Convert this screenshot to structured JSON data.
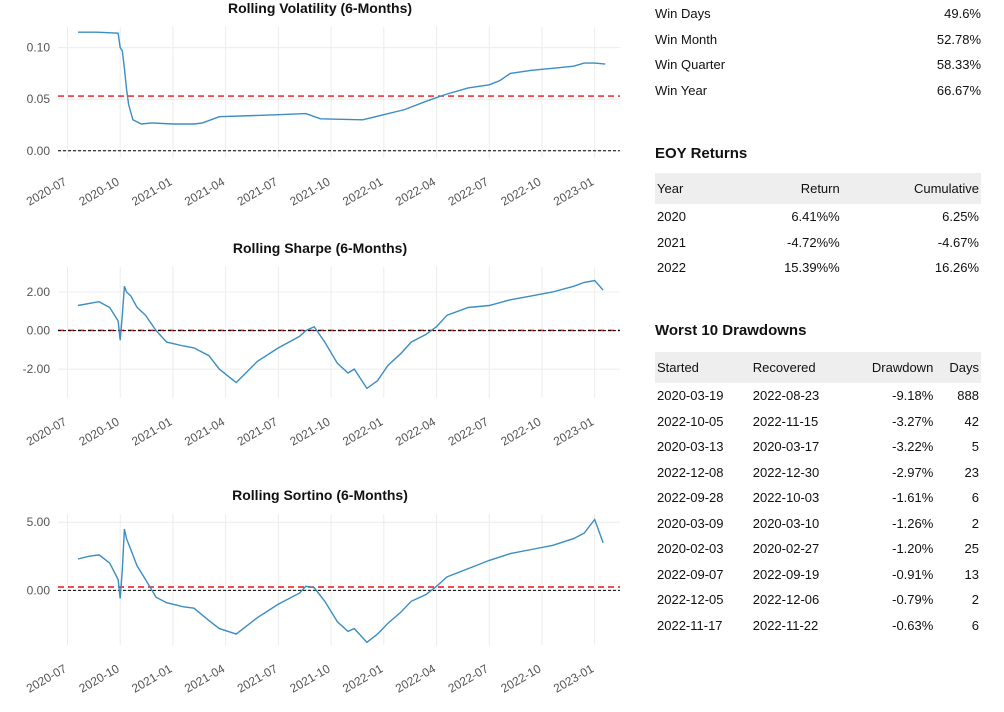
{
  "chart_data": [
    {
      "type": "line",
      "title": "Rolling Volatility (6-Months)",
      "x_ticks": [
        "2020-07",
        "2020-10",
        "2021-01",
        "2021-04",
        "2021-07",
        "2021-10",
        "2022-01",
        "2022-04",
        "2022-07",
        "2022-10",
        "2023-01"
      ],
      "y_ticks": [
        "0.00",
        "0.05",
        "0.10"
      ],
      "ylim": [
        -0.007,
        0.12
      ],
      "xlim": [
        2020.455,
        2023.12
      ],
      "reference_lines": [
        {
          "value": 0.053,
          "color": "#e8141a",
          "style": "dashed"
        },
        {
          "value": 0,
          "color": "#000000",
          "style": "dashed"
        }
      ],
      "series": [
        {
          "name": "Rolling Volatility",
          "color": "#3b8dc2",
          "x": [
            2020.55,
            2020.64,
            2020.74,
            2020.75,
            2020.76,
            2020.77,
            2020.78,
            2020.79,
            2020.81,
            2020.85,
            2020.9,
            2021.0,
            2021.1,
            2021.14,
            2021.22,
            2021.5,
            2021.63,
            2021.7,
            2021.9,
            2022.0,
            2022.1,
            2022.2,
            2022.27,
            2022.3,
            2022.4,
            2022.5,
            2022.55,
            2022.6,
            2022.7,
            2022.8,
            2022.9,
            2022.95,
            2023.0,
            2023.05
          ],
          "values": [
            0.115,
            0.115,
            0.114,
            0.1,
            0.097,
            0.08,
            0.06,
            0.045,
            0.03,
            0.026,
            0.027,
            0.026,
            0.026,
            0.027,
            0.033,
            0.035,
            0.036,
            0.031,
            0.03,
            0.035,
            0.04,
            0.048,
            0.053,
            0.055,
            0.061,
            0.064,
            0.068,
            0.075,
            0.078,
            0.08,
            0.082,
            0.085,
            0.085,
            0.084
          ]
        }
      ]
    },
    {
      "type": "line",
      "title": "Rolling Sharpe (6-Months)",
      "x_ticks": [
        "2020-07",
        "2020-10",
        "2021-01",
        "2021-04",
        "2021-07",
        "2021-10",
        "2022-01",
        "2022-04",
        "2022-07",
        "2022-10",
        "2023-01"
      ],
      "y_ticks": [
        "-2.00",
        "0.00",
        "2.00"
      ],
      "ylim": [
        -3.5,
        3.3
      ],
      "xlim": [
        2020.455,
        2023.12
      ],
      "reference_lines": [
        {
          "value": 0.01,
          "color": "#e8141a",
          "style": "dashed"
        },
        {
          "value": 0,
          "color": "#000000",
          "style": "dashed"
        }
      ],
      "series": [
        {
          "name": "Rolling Sharpe",
          "color": "#3b8dc2",
          "x": [
            2020.55,
            2020.6,
            2020.65,
            2020.7,
            2020.74,
            2020.75,
            2020.76,
            2020.77,
            2020.78,
            2020.8,
            2020.83,
            2020.87,
            2020.92,
            2020.97,
            2021.05,
            2021.1,
            2021.17,
            2021.22,
            2021.3,
            2021.4,
            2021.5,
            2021.6,
            2021.63,
            2021.67,
            2021.72,
            2021.78,
            2021.83,
            2021.86,
            2021.92,
            2021.97,
            2022.02,
            2022.08,
            2022.13,
            2022.2,
            2022.25,
            2022.3,
            2022.4,
            2022.5,
            2022.6,
            2022.7,
            2022.8,
            2022.9,
            2022.95,
            2023.0,
            2023.04
          ],
          "values": [
            1.3,
            1.4,
            1.5,
            1.2,
            0.5,
            -0.5,
            0.8,
            2.3,
            2.0,
            1.8,
            1.2,
            0.8,
            0.0,
            -0.6,
            -0.8,
            -0.9,
            -1.3,
            -2.0,
            -2.7,
            -1.6,
            -0.9,
            -0.3,
            0.0,
            0.2,
            -0.6,
            -1.7,
            -2.2,
            -2.0,
            -3.0,
            -2.6,
            -1.8,
            -1.2,
            -0.6,
            -0.2,
            0.2,
            0.8,
            1.2,
            1.3,
            1.6,
            1.8,
            2.0,
            2.3,
            2.5,
            2.6,
            2.1
          ]
        }
      ]
    },
    {
      "type": "line",
      "title": "Rolling Sortino (6-Months)",
      "x_ticks": [
        "2020-07",
        "2020-10",
        "2021-01",
        "2021-04",
        "2021-07",
        "2021-10",
        "2022-01",
        "2022-04",
        "2022-07",
        "2022-10",
        "2023-01"
      ],
      "y_ticks": [
        "0.00",
        "5.00"
      ],
      "ylim": [
        -4.0,
        5.6
      ],
      "xlim": [
        2020.455,
        2023.12
      ],
      "reference_lines": [
        {
          "value": 0.25,
          "color": "#e8141a",
          "style": "dashed"
        },
        {
          "value": 0,
          "color": "#000000",
          "style": "dashed"
        }
      ],
      "series": [
        {
          "name": "Rolling Sortino",
          "color": "#3b8dc2",
          "x": [
            2020.55,
            2020.6,
            2020.65,
            2020.7,
            2020.74,
            2020.75,
            2020.76,
            2020.77,
            2020.78,
            2020.8,
            2020.83,
            2020.87,
            2020.92,
            2020.97,
            2021.05,
            2021.1,
            2021.17,
            2021.22,
            2021.3,
            2021.4,
            2021.5,
            2021.6,
            2021.63,
            2021.67,
            2021.72,
            2021.78,
            2021.83,
            2021.86,
            2021.92,
            2021.97,
            2022.02,
            2022.08,
            2022.13,
            2022.2,
            2022.25,
            2022.3,
            2022.4,
            2022.5,
            2022.6,
            2022.7,
            2022.8,
            2022.9,
            2022.95,
            2023.0,
            2023.04
          ],
          "values": [
            2.3,
            2.5,
            2.6,
            2.0,
            0.8,
            -0.6,
            1.5,
            4.5,
            3.8,
            3.0,
            1.8,
            0.8,
            -0.5,
            -0.9,
            -1.2,
            -1.3,
            -2.2,
            -2.8,
            -3.2,
            -2.0,
            -1.0,
            -0.2,
            0.3,
            0.2,
            -0.8,
            -2.3,
            -3.0,
            -2.8,
            -3.8,
            -3.2,
            -2.4,
            -1.6,
            -0.8,
            -0.3,
            0.3,
            1.0,
            1.6,
            2.2,
            2.7,
            3.0,
            3.3,
            3.8,
            4.2,
            5.2,
            3.5
          ]
        }
      ]
    }
  ],
  "win_stats": [
    {
      "label": "Win Days",
      "value": "49.6%"
    },
    {
      "label": "Win Month",
      "value": "52.78%"
    },
    {
      "label": "Win Quarter",
      "value": "58.33%"
    },
    {
      "label": "Win Year",
      "value": "66.67%"
    }
  ],
  "eoy": {
    "title": "EOY Returns",
    "headers": [
      "Year",
      "Return",
      "Cumulative"
    ],
    "rows": [
      [
        "2020",
        "6.41%%",
        "6.25%"
      ],
      [
        "2021",
        "-4.72%%",
        "-4.67%"
      ],
      [
        "2022",
        "15.39%%",
        "16.26%"
      ]
    ]
  },
  "drawdowns": {
    "title": "Worst 10 Drawdowns",
    "headers": [
      "Started",
      "Recovered",
      "Drawdown",
      "Days"
    ],
    "rows": [
      [
        "2020-03-19",
        "2022-08-23",
        "-9.18%",
        "888"
      ],
      [
        "2022-10-05",
        "2022-11-15",
        "-3.27%",
        "42"
      ],
      [
        "2020-03-13",
        "2020-03-17",
        "-3.22%",
        "5"
      ],
      [
        "2022-12-08",
        "2022-12-30",
        "-2.97%",
        "23"
      ],
      [
        "2022-09-28",
        "2022-10-03",
        "-1.61%",
        "6"
      ],
      [
        "2020-03-09",
        "2020-03-10",
        "-1.26%",
        "2"
      ],
      [
        "2020-02-03",
        "2020-02-27",
        "-1.20%",
        "25"
      ],
      [
        "2022-09-07",
        "2022-09-19",
        "-0.91%",
        "13"
      ],
      [
        "2022-12-05",
        "2022-12-06",
        "-0.79%",
        "2"
      ],
      [
        "2022-11-17",
        "2022-11-22",
        "-0.63%",
        "6"
      ]
    ]
  }
}
